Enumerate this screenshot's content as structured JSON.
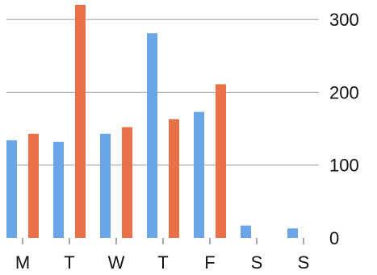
{
  "chart_data": {
    "type": "bar",
    "categories": [
      "M",
      "T",
      "W",
      "T",
      "F",
      "S",
      "S"
    ],
    "series": [
      {
        "color": "#6aa5e8",
        "values": [
          134,
          132,
          143,
          281,
          173,
          17,
          13
        ]
      },
      {
        "color": "#e8714a",
        "values": [
          143,
          320,
          152,
          163,
          211,
          0,
          0
        ]
      }
    ],
    "ylim": [
      0,
      320
    ],
    "yticks": [
      0,
      100,
      200,
      300
    ],
    "ytick_labels": [
      "0",
      "100",
      "200",
      "300"
    ],
    "y_axis_position": "right",
    "grid": true
  }
}
